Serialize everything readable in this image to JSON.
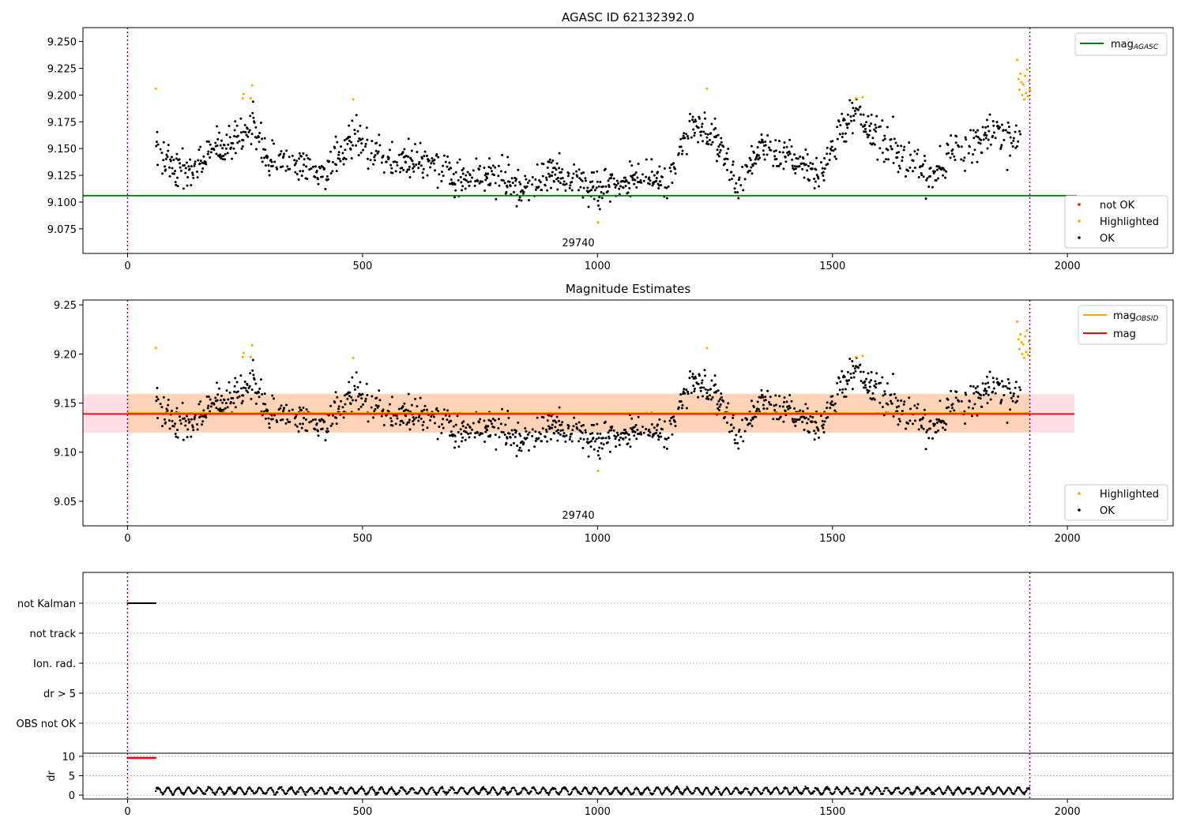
{
  "chart_data": [
    {
      "type": "scatter",
      "title": "AGASC ID 62132392.0",
      "xlabel": "",
      "ylabel": "",
      "xlim": [
        -95,
        2225
      ],
      "ylim": [
        9.052,
        9.263
      ],
      "x_ticks": [
        0,
        500,
        1000,
        1500,
        2000
      ],
      "y_ticks": [
        9.075,
        9.1,
        9.125,
        9.15,
        9.175,
        9.2,
        9.225,
        9.25
      ],
      "y_tick_decimals": 3,
      "grid": false,
      "obsid_annotation": {
        "text": "29740",
        "x": 960
      },
      "vlines": [
        0,
        1920
      ],
      "hlines": [
        {
          "name": "mag",
          "subscript": "AGASC",
          "y": 9.106,
          "x_end": 2020,
          "color": "#008000"
        }
      ],
      "legend_lines": {
        "position": "top-right",
        "entries": [
          {
            "name": "mag",
            "subscript": "AGASC",
            "color": "#008000"
          }
        ]
      },
      "legend_points": {
        "position": "lower-right",
        "entries": [
          {
            "name": "not OK",
            "color": "#ff0000"
          },
          {
            "name": "Highlighted",
            "color": "#ffa500"
          },
          {
            "name": "OK",
            "color": "#000000"
          }
        ]
      },
      "highlighted_points": [
        [
          60,
          9.206
        ],
        [
          245,
          9.197
        ],
        [
          247,
          9.201
        ],
        [
          262,
          9.197
        ],
        [
          265,
          9.209
        ],
        [
          480,
          9.196
        ],
        [
          1001,
          9.081
        ],
        [
          1233,
          9.206
        ],
        [
          1550,
          9.197
        ],
        [
          1564,
          9.198
        ],
        [
          1893,
          9.233
        ],
        [
          1896,
          9.215
        ],
        [
          1898,
          9.205
        ],
        [
          1900,
          9.22
        ],
        [
          1902,
          9.212
        ],
        [
          1904,
          9.2
        ],
        [
          1906,
          9.21
        ],
        [
          1908,
          9.196
        ],
        [
          1910,
          9.218
        ],
        [
          1912,
          9.202
        ],
        [
          1914,
          9.224
        ],
        [
          1916,
          9.199
        ],
        [
          1918,
          9.213
        ],
        [
          1920,
          9.205
        ]
      ],
      "ok_points_profile": [
        [
          60,
          9.148
        ],
        [
          130,
          9.13
        ],
        [
          175,
          9.145
        ],
        [
          200,
          9.148
        ],
        [
          240,
          9.16
        ],
        [
          265,
          9.176
        ],
        [
          300,
          9.138
        ],
        [
          350,
          9.138
        ],
        [
          420,
          9.125
        ],
        [
          480,
          9.162
        ],
        [
          560,
          9.137
        ],
        [
          650,
          9.14
        ],
        [
          700,
          9.12
        ],
        [
          780,
          9.125
        ],
        [
          850,
          9.11
        ],
        [
          900,
          9.128
        ],
        [
          960,
          9.118
        ],
        [
          1000,
          9.112
        ],
        [
          1100,
          9.125
        ],
        [
          1150,
          9.12
        ],
        [
          1200,
          9.17
        ],
        [
          1250,
          9.162
        ],
        [
          1300,
          9.118
        ],
        [
          1350,
          9.153
        ],
        [
          1420,
          9.14
        ],
        [
          1480,
          9.125
        ],
        [
          1500,
          9.155
        ],
        [
          1550,
          9.183
        ],
        [
          1600,
          9.16
        ],
        [
          1680,
          9.132
        ],
        [
          1700,
          9.118
        ],
        [
          1760,
          9.147
        ],
        [
          1800,
          9.155
        ],
        [
          1860,
          9.165
        ],
        [
          1900,
          9.155
        ]
      ]
    },
    {
      "type": "scatter",
      "title": "Magnitude Estimates",
      "xlabel": "",
      "ylabel": "",
      "xlim": [
        -95,
        2225
      ],
      "ylim": [
        9.025,
        9.255
      ],
      "x_ticks": [
        0,
        500,
        1000,
        1500,
        2000
      ],
      "y_ticks": [
        9.05,
        9.1,
        9.15,
        9.2,
        9.25
      ],
      "y_tick_decimals": 2,
      "grid": false,
      "obsid_annotation": {
        "text": "29740",
        "x": 960
      },
      "vlines": [
        0,
        1920
      ],
      "bands": [
        {
          "x0": -95,
          "x1": 2015,
          "y0": 9.12,
          "y1": 9.159,
          "color": "#ffc0cb",
          "opacity": 0.5
        },
        {
          "x0": 0,
          "x1": 1920,
          "y0": 9.12,
          "y1": 9.16,
          "color": "#ffa500",
          "opacity": 0.2
        }
      ],
      "hlines": [
        {
          "name": "mag",
          "subscript": "OBSID",
          "y": 9.14,
          "x_end": 1920,
          "color": "#ffa500"
        },
        {
          "name": "mag",
          "subscript": "",
          "y": 9.139,
          "x_end": 2015,
          "color": "#ff0000"
        }
      ],
      "legend_lines": {
        "position": "top-right",
        "entries": [
          {
            "name": "mag",
            "subscript": "OBSID",
            "color": "#ffa500"
          },
          {
            "name": "mag",
            "subscript": "",
            "color": "#ff0000"
          }
        ]
      },
      "legend_points": {
        "position": "lower-right",
        "entries": [
          {
            "name": "Highlighted",
            "color": "#ffa500"
          },
          {
            "name": "OK",
            "color": "#000000"
          }
        ]
      }
    },
    {
      "type": "scatter",
      "title": "",
      "xlabel": "",
      "ylabel": "",
      "xlim": [
        -95,
        2225
      ],
      "flag_rows": [
        "not Kalman",
        "not track",
        "Ion. rad.",
        "dr > 5",
        "OBS not OK"
      ],
      "flag_segments": [
        {
          "row": "not Kalman",
          "x_from": 0,
          "x_to": 60
        }
      ],
      "grid": "horizontal-dotted",
      "vlines": [
        0,
        1920
      ]
    },
    {
      "type": "scatter",
      "title": "",
      "xlabel": "",
      "ylabel": "dr",
      "xlim": [
        -95,
        2225
      ],
      "ylim": [
        -1,
        10.8
      ],
      "x_ticks": [
        0,
        500,
        1000,
        1500,
        2000
      ],
      "y_ticks": [
        0,
        5,
        10
      ],
      "grid": "horizontal-dotted",
      "vlines": [
        0,
        1920
      ],
      "red_segment": {
        "x_from": 0,
        "x_to": 60,
        "y": 9.6,
        "color": "#ff0000"
      },
      "dr_range": [
        0,
        2.8
      ]
    }
  ]
}
